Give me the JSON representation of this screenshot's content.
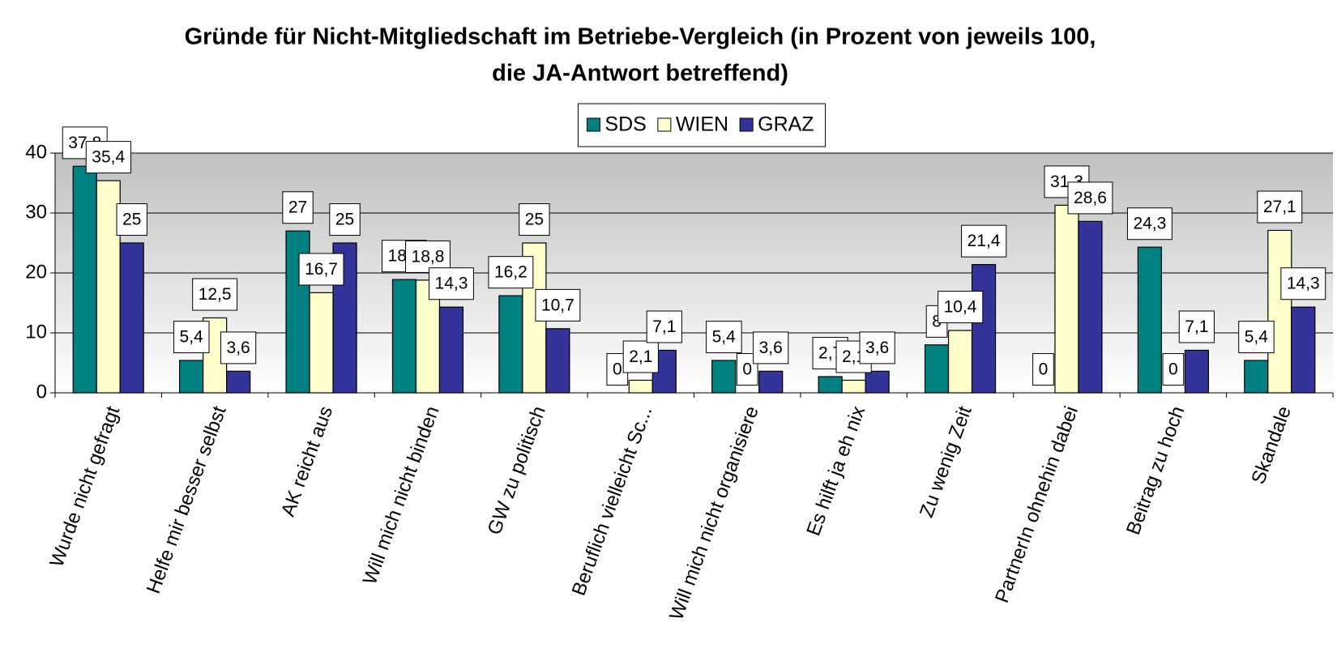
{
  "chart_data": {
    "type": "bar",
    "title": [
      "Gründe für Nicht-Mitgliedschaft im Betriebe-Vergleich (in Prozent von jeweils 100,",
      "die JA-Antwort betreffend)"
    ],
    "categories": [
      "Wurde nicht gefragt",
      "Helfe mir besser selbst",
      "AK reicht aus",
      "Will mich nicht binden",
      "GW zu politisch",
      "Beruflich vielleicht Sc...",
      "Will mich nicht organisiere",
      "Es hilft ja eh nix",
      "Zu wenig Zeit",
      "PartnerIn ohnehin dabei",
      "Beitrag zu hoch",
      "Skandale"
    ],
    "series": [
      {
        "name": "SDS",
        "color": "#008080",
        "values": [
          37.8,
          5.4,
          27,
          18.9,
          16.2,
          0,
          5.4,
          2.7,
          8,
          0,
          24.3,
          5.4
        ],
        "value_labels": [
          "37,8",
          "5,4",
          "27",
          "18,9",
          "16,2",
          "0",
          "5,4",
          "2,7",
          "8",
          "0",
          "24,3",
          "5,4"
        ]
      },
      {
        "name": "WIEN",
        "color": "#ffffcc",
        "values": [
          35.4,
          12.5,
          16.7,
          18.8,
          25,
          2.1,
          0,
          2.1,
          10.4,
          31.3,
          0,
          27.1
        ],
        "value_labels": [
          "35,4",
          "12,5",
          "16,7",
          "18,8",
          "25",
          "2,1",
          "0",
          "2,1",
          "10,4",
          "31,3",
          "0",
          "27,1"
        ]
      },
      {
        "name": "GRAZ",
        "color": "#333399",
        "values": [
          25,
          3.6,
          25,
          14.3,
          10.7,
          7.1,
          3.6,
          3.6,
          21.4,
          28.6,
          7.1,
          14.3
        ],
        "value_labels": [
          "25",
          "3,6",
          "25",
          "14,3",
          "10,7",
          "7,1",
          "3,6",
          "3,6",
          "21,4",
          "28,6",
          "7,1",
          "14,3"
        ]
      }
    ],
    "ylim": [
      0,
      40
    ],
    "yticks": [
      0,
      10,
      20,
      30,
      40
    ],
    "grid": true,
    "legend": "top"
  }
}
